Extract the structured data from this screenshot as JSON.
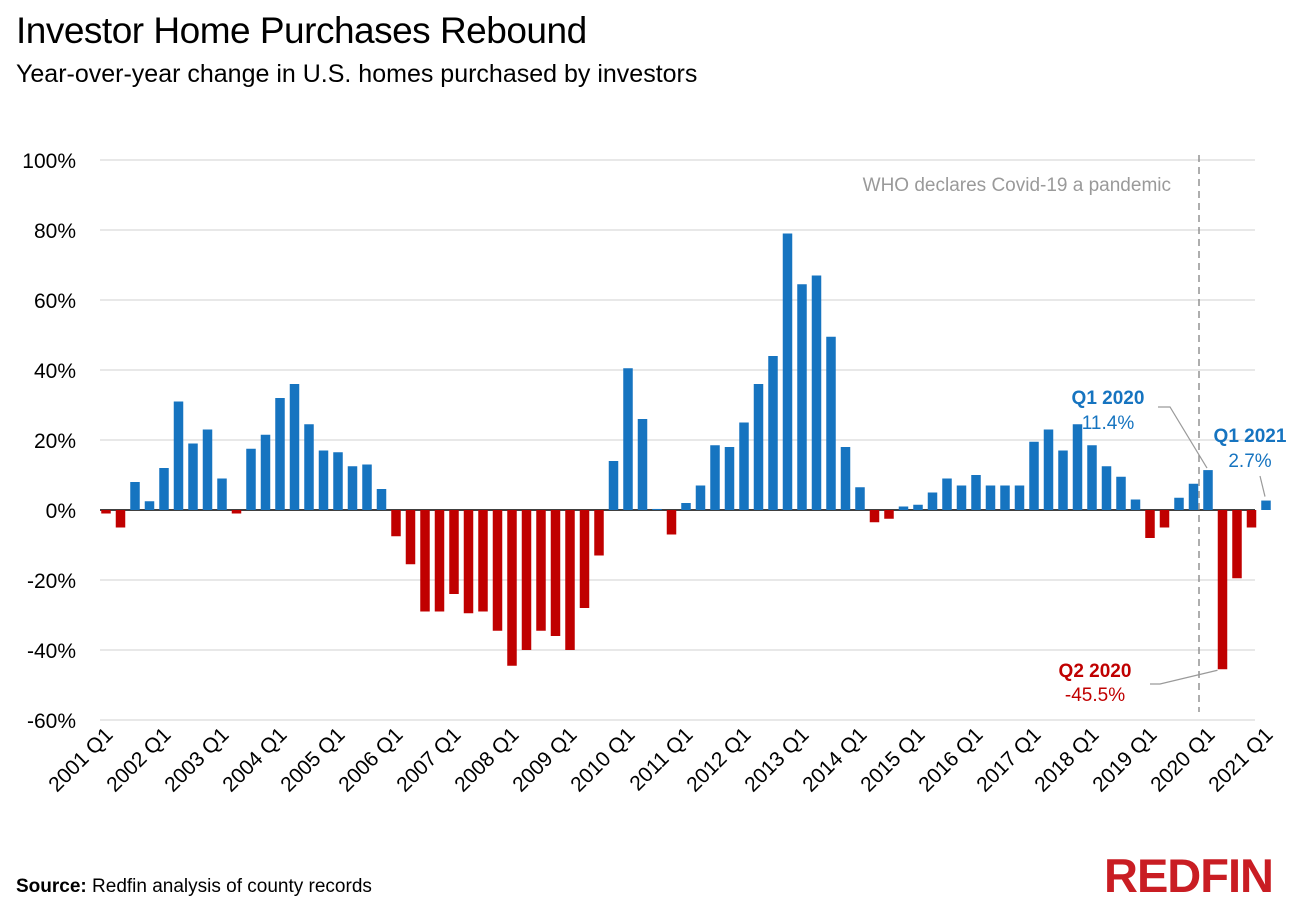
{
  "chart_data": {
    "type": "bar",
    "title": "Investor Home Purchases Rebound",
    "subtitle": "Year-over-year change in U.S. homes purchased by investors",
    "xlabel": "",
    "ylabel": "",
    "ylim": [
      -60,
      100
    ],
    "y_ticks": [
      "100%",
      "80%",
      "60%",
      "40%",
      "20%",
      "0%",
      "-20%",
      "-40%",
      "-60%"
    ],
    "y_tick_values": [
      100,
      80,
      60,
      40,
      20,
      0,
      -20,
      -40,
      -60
    ],
    "x_tick_labels": [
      "2001 Q1",
      "2002 Q1",
      "2003 Q1",
      "2004 Q1",
      "2005 Q1",
      "2006 Q1",
      "2007 Q1",
      "2008 Q1",
      "2009 Q1",
      "2010 Q1",
      "2011 Q1",
      "2012 Q1",
      "2013 Q1",
      "2014 Q1",
      "2015 Q1",
      "2016 Q1",
      "2017 Q1",
      "2018 Q1",
      "2019 Q1",
      "2020 Q1",
      "2021 Q1"
    ],
    "start": "2001 Q1",
    "values": [
      -1,
      -5,
      8,
      2.5,
      12,
      31,
      19,
      23,
      9,
      -1,
      17.5,
      21.5,
      32,
      36,
      24.5,
      17,
      16.5,
      12.5,
      13,
      6,
      -7.5,
      -15.5,
      -29,
      -29,
      -24,
      -29.5,
      -29,
      -34.5,
      -44.5,
      -40,
      -34.5,
      -36,
      -40,
      -28,
      -13,
      14,
      40.5,
      26,
      0.3,
      -7,
      2,
      7,
      18.5,
      18,
      25,
      36,
      44,
      79,
      64.5,
      67,
      49.5,
      18,
      6.5,
      -3.5,
      -2.5,
      1,
      1.5,
      5,
      9,
      7,
      10,
      7,
      7,
      7,
      19.5,
      23,
      17,
      24.5,
      18.5,
      12.5,
      9.5,
      3,
      -8,
      -5,
      3.5,
      7.5,
      11.4,
      -45.5,
      -19.5,
      -5,
      2.7
    ],
    "colors": {
      "positive": "#1674c0",
      "negative": "#c00000"
    },
    "reference_line": {
      "label": "WHO declares Covid-19 a pandemic",
      "at": "2020 Q1"
    },
    "annotations": [
      {
        "period": "Q1 2020",
        "value": "11.4%",
        "color": "#1674c0"
      },
      {
        "period": "Q2 2020",
        "value": "-45.5%",
        "color": "#c00000"
      },
      {
        "period": "Q1 2021",
        "value": "2.7%",
        "color": "#1674c0"
      }
    ]
  },
  "source": {
    "label": "Source:",
    "text": " Redfin analysis of county records"
  },
  "logo": {
    "text": "REDFIN"
  }
}
